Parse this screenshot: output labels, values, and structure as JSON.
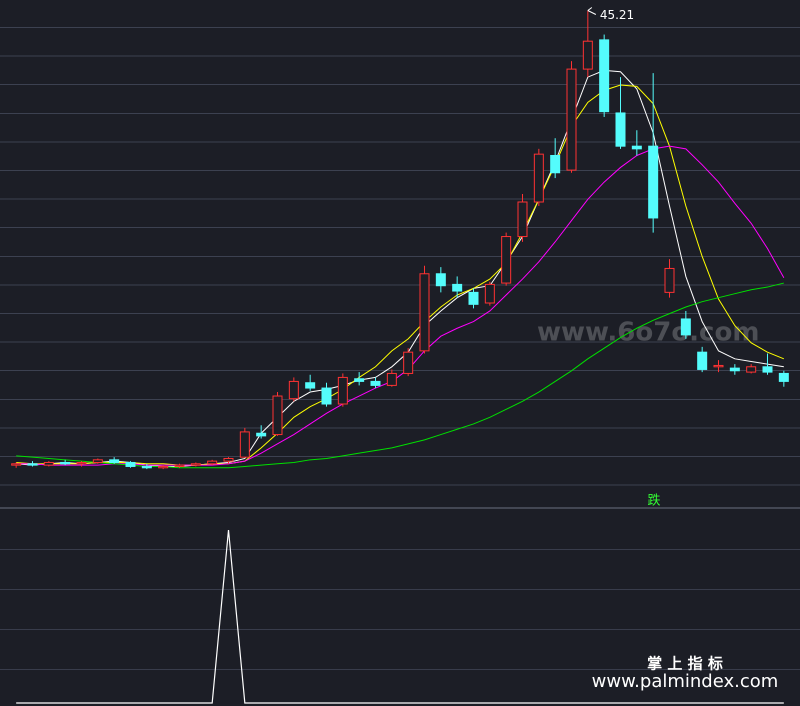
{
  "chart_data": [
    {
      "type": "candlestick",
      "categories": [
        null,
        null,
        null,
        null,
        null,
        null,
        null,
        null,
        null,
        null,
        null,
        null,
        null,
        null,
        null,
        null,
        null,
        null,
        null,
        null,
        null,
        null,
        null,
        null,
        null,
        null,
        null,
        null,
        null,
        null,
        null,
        null,
        null,
        null,
        null,
        null,
        null,
        null,
        null,
        null,
        null,
        null,
        null,
        null,
        null,
        null,
        null,
        null
      ],
      "open": [
        11.0,
        11.1,
        11.0,
        11.2,
        11.1,
        11.2,
        11.4,
        11.2,
        10.9,
        10.8,
        10.9,
        11.0,
        11.1,
        11.3,
        11.6,
        13.4,
        13.3,
        16.0,
        17.2,
        16.8,
        15.6,
        17.5,
        17.3,
        17.0,
        17.9,
        19.6,
        25.4,
        24.6,
        24.0,
        23.2,
        24.7,
        28.2,
        30.8,
        34.3,
        33.2,
        40.8,
        43.0,
        37.5,
        35.0,
        35.0,
        24.0,
        22.0,
        19.5,
        18.4,
        18.3,
        18.0,
        18.4,
        17.9
      ],
      "high": [
        11.2,
        11.3,
        11.3,
        11.4,
        11.3,
        11.5,
        11.6,
        11.3,
        11.1,
        11.0,
        11.1,
        11.2,
        11.4,
        11.6,
        13.8,
        14.0,
        16.5,
        17.6,
        17.8,
        17.2,
        17.9,
        18.0,
        17.6,
        18.2,
        19.8,
        26.0,
        25.9,
        25.2,
        24.3,
        24.8,
        28.5,
        31.4,
        34.8,
        35.6,
        41.4,
        45.21,
        43.4,
        40.2,
        36.2,
        40.5,
        26.5,
        22.6,
        19.9,
        18.9,
        18.6,
        18.6,
        19.4,
        18.1
      ],
      "low": [
        10.8,
        10.9,
        10.9,
        11.0,
        10.9,
        11.1,
        11.1,
        10.8,
        10.7,
        10.7,
        10.8,
        10.9,
        11.0,
        11.1,
        11.6,
        13.0,
        13.2,
        15.8,
        16.6,
        15.4,
        15.4,
        17.0,
        16.8,
        16.9,
        17.7,
        19.4,
        24.0,
        23.6,
        22.8,
        23.0,
        24.5,
        27.8,
        30.5,
        32.6,
        33.0,
        40.2,
        37.2,
        34.8,
        34.3,
        28.5,
        23.6,
        20.5,
        18.0,
        18.0,
        17.8,
        17.9,
        17.8,
        16.9
      ],
      "close": [
        11.1,
        11.0,
        11.2,
        11.1,
        11.2,
        11.4,
        11.2,
        10.9,
        10.8,
        10.9,
        11.0,
        11.1,
        11.3,
        11.5,
        13.5,
        13.2,
        16.2,
        17.3,
        16.8,
        15.6,
        17.6,
        17.3,
        17.0,
        17.9,
        19.5,
        25.4,
        24.5,
        24.1,
        23.1,
        24.6,
        28.2,
        30.8,
        34.4,
        33.0,
        40.8,
        42.9,
        37.6,
        35.0,
        34.8,
        29.6,
        25.8,
        20.8,
        18.2,
        18.5,
        18.1,
        18.4,
        18.0,
        17.3
      ],
      "up_color": "#ff3232",
      "down_color": "#54fcfc",
      "series": [
        {
          "color": "#ffffff",
          "values": [
            11.1,
            11.0,
            11.1,
            11.2,
            11.1,
            11.2,
            11.3,
            11.2,
            11.0,
            10.9,
            10.9,
            11.0,
            11.1,
            11.2,
            11.5,
            13.4,
            14.6,
            15.8,
            16.5,
            16.7,
            17.0,
            17.4,
            17.6,
            18.4,
            19.5,
            21.5,
            22.6,
            23.6,
            24.3,
            24.5,
            26.3,
            28.2,
            31.0,
            33.8,
            37.0,
            40.2,
            40.7,
            40.6,
            39.3,
            36.0,
            30.5,
            25.2,
            21.8,
            19.6,
            19.0,
            18.8,
            18.6,
            18.4
          ]
        },
        {
          "color": "#ffff00",
          "values": [
            11.2,
            11.1,
            11.1,
            11.1,
            11.1,
            11.2,
            11.2,
            11.2,
            11.1,
            11.1,
            11.0,
            11.0,
            11.1,
            11.1,
            11.3,
            12.3,
            13.4,
            14.6,
            15.4,
            16.0,
            16.7,
            17.6,
            18.4,
            19.6,
            20.5,
            21.8,
            22.9,
            23.8,
            24.3,
            25.0,
            26.2,
            28.5,
            31.0,
            33.6,
            36.5,
            38.3,
            39.2,
            39.6,
            39.5,
            38.2,
            35.0,
            30.5,
            26.7,
            23.5,
            21.5,
            20.2,
            19.5,
            19.0
          ]
        },
        {
          "color": "#ff00ff",
          "values": [
            11.1,
            11.1,
            11.0,
            11.0,
            11.0,
            11.0,
            11.1,
            11.1,
            11.0,
            11.0,
            11.0,
            11.0,
            11.0,
            11.1,
            11.3,
            11.9,
            12.6,
            13.3,
            14.1,
            14.9,
            15.6,
            16.2,
            16.8,
            17.3,
            18.2,
            19.6,
            20.7,
            21.3,
            21.8,
            22.6,
            23.8,
            25.0,
            26.3,
            27.8,
            29.4,
            31.0,
            32.3,
            33.4,
            34.3,
            34.8,
            35.0,
            34.8,
            33.6,
            32.3,
            30.7,
            29.2,
            27.3,
            25.1
          ]
        },
        {
          "color": "#00e000",
          "values": [
            11.7,
            11.6,
            11.5,
            11.4,
            11.3,
            11.2,
            11.1,
            11.0,
            10.9,
            10.9,
            10.8,
            10.8,
            10.8,
            10.8,
            10.9,
            11.0,
            11.1,
            11.2,
            11.4,
            11.5,
            11.7,
            11.9,
            12.1,
            12.3,
            12.6,
            12.9,
            13.3,
            13.7,
            14.1,
            14.6,
            15.2,
            15.8,
            16.5,
            17.3,
            18.1,
            19.0,
            19.8,
            20.6,
            21.3,
            21.9,
            22.4,
            22.9,
            23.3,
            23.6,
            23.9,
            24.2,
            24.4,
            24.7
          ]
        }
      ],
      "ylim": [
        8,
        46
      ],
      "max_label": "45.21",
      "signal": "跌"
    },
    {
      "type": "line",
      "color": "#ffffff",
      "values": [
        0,
        0,
        0,
        0,
        0,
        0,
        0,
        0,
        0,
        0,
        0,
        0,
        0,
        1,
        0,
        0,
        0,
        0,
        0,
        0,
        0,
        0,
        0,
        0,
        0,
        0,
        0,
        0,
        0,
        0,
        0,
        0,
        0,
        0,
        0,
        0,
        0,
        0,
        0,
        0,
        0,
        0,
        0,
        0,
        0,
        0,
        0,
        0
      ],
      "ylim": [
        0,
        1
      ]
    }
  ],
  "watermarks": {
    "site": "www.6o7o.com",
    "brand": "掌 上 指 标",
    "url": "www.palmindex.com"
  }
}
